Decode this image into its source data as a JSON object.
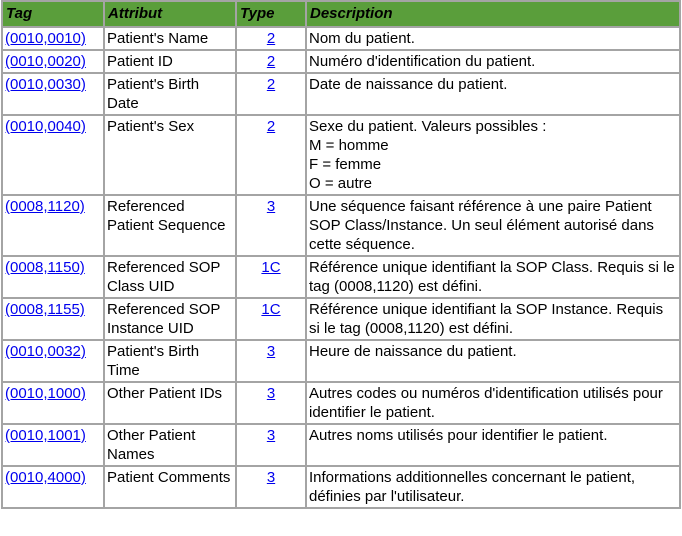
{
  "header": {
    "tag": "Tag",
    "attribut": "Attribut",
    "type": "Type",
    "description": "Description"
  },
  "colors": {
    "header_bg": "#5a9e3b",
    "grid": "#a4a4a4",
    "link": "#0000ee"
  },
  "rows": [
    {
      "tag": "(0010,0010)",
      "attribut": "Patient's Name",
      "type": "2",
      "description": [
        "Nom du patient."
      ]
    },
    {
      "tag": "(0010,0020)",
      "attribut": "Patient ID",
      "type": "2",
      "description": [
        "Numéro d'identification du patient."
      ]
    },
    {
      "tag": "(0010,0030)",
      "attribut": "Patient's Birth Date",
      "type": "2",
      "description": [
        "Date de naissance du patient."
      ]
    },
    {
      "tag": "(0010,0040)",
      "attribut": "Patient's Sex",
      "type": "2",
      "description": [
        "Sexe du patient. Valeurs possibles :",
        "M = homme",
        "F = femme",
        "O = autre"
      ]
    },
    {
      "tag": "(0008,1120)",
      "attribut": "Referenced Patient Sequence",
      "type": "3",
      "description": [
        "Une séquence faisant référence à une paire Patient SOP Class/Instance. Un seul élément autorisé dans cette séquence."
      ]
    },
    {
      "tag": "(0008,1150)",
      "attribut": "Referenced SOP Class UID",
      "type": "1C",
      "description": [
        "Référence unique identifiant la SOP Class. Requis si le tag (0008,1120) est défini."
      ]
    },
    {
      "tag": "(0008,1155)",
      "attribut": "Referenced SOP Instance UID",
      "type": "1C",
      "description": [
        "Référence unique identifiant la SOP Instance. Requis si le tag (0008,1120) est défini."
      ]
    },
    {
      "tag": "(0010,0032)",
      "attribut": "Patient's Birth Time",
      "type": "3",
      "description": [
        "Heure de naissance du patient."
      ]
    },
    {
      "tag": "(0010,1000)",
      "attribut": "Other Patient IDs",
      "type": "3",
      "description": [
        "Autres codes ou numéros d'identification utilisés pour identifier le patient."
      ]
    },
    {
      "tag": "(0010,1001)",
      "attribut": "Other Patient Names",
      "type": "3",
      "description": [
        "Autres noms utilisés pour identifier le patient."
      ]
    },
    {
      "tag": "(0010,4000)",
      "attribut": "Patient Comments",
      "type": "3",
      "description": [
        "Informations additionnelles concernant le patient, définies par l'utilisateur."
      ]
    }
  ]
}
